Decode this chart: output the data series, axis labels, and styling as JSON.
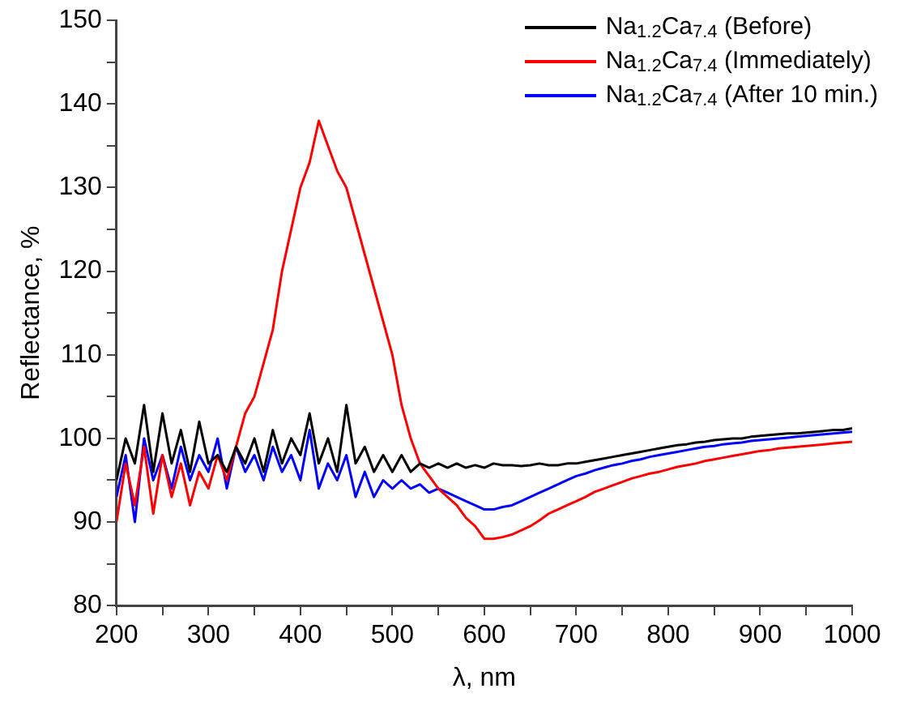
{
  "chart_data": {
    "type": "line",
    "xlabel": "λ, nm",
    "ylabel": "Reflectance, %",
    "x": [
      200,
      210,
      220,
      230,
      240,
      250,
      260,
      270,
      280,
      290,
      300,
      310,
      320,
      330,
      340,
      350,
      360,
      370,
      380,
      390,
      400,
      410,
      420,
      430,
      440,
      450,
      460,
      470,
      480,
      490,
      500,
      510,
      520,
      530,
      540,
      550,
      560,
      570,
      580,
      590,
      600,
      610,
      620,
      630,
      640,
      650,
      660,
      670,
      680,
      690,
      700,
      710,
      720,
      730,
      740,
      750,
      760,
      770,
      780,
      790,
      800,
      810,
      820,
      830,
      840,
      850,
      860,
      870,
      880,
      890,
      900,
      910,
      920,
      930,
      940,
      950,
      960,
      970,
      980,
      990,
      1000
    ],
    "series": [
      {
        "name": "Na$_{1.2}$Ca$_{7.4}$ (Before)",
        "color": "#000000",
        "values": [
          95,
          100,
          97,
          104,
          96,
          103,
          97,
          101,
          96,
          102,
          97,
          98,
          96,
          99,
          97,
          100,
          96,
          101,
          97,
          100,
          98,
          103,
          97,
          100,
          96,
          104,
          97,
          99,
          96,
          98,
          96,
          98,
          96,
          97,
          96.5,
          97,
          96.5,
          97,
          96.5,
          96.8,
          96.5,
          97,
          96.8,
          96.8,
          96.7,
          96.8,
          97,
          96.8,
          96.8,
          97,
          97,
          97.2,
          97.4,
          97.6,
          97.8,
          98,
          98.2,
          98.4,
          98.6,
          98.8,
          99,
          99.2,
          99.3,
          99.5,
          99.6,
          99.8,
          99.9,
          100,
          100,
          100.2,
          100.3,
          100.4,
          100.5,
          100.6,
          100.6,
          100.7,
          100.8,
          100.9,
          101,
          101,
          101.2
        ]
      },
      {
        "name": "Na$_{1.2}$Ca$_{7.4}$ (Immediately)",
        "color": "#ff0000",
        "values": [
          90,
          97,
          92,
          99,
          91,
          98,
          93,
          97,
          92,
          96,
          94,
          98,
          95,
          99,
          103,
          105,
          109,
          113,
          120,
          125,
          130,
          133,
          138,
          135,
          132,
          130,
          126,
          122,
          118,
          114,
          110,
          104,
          100,
          97,
          95.5,
          94,
          93,
          92,
          90.5,
          89.5,
          88,
          88,
          88.2,
          88.5,
          89,
          89.5,
          90.2,
          91,
          91.5,
          92,
          92.5,
          93,
          93.6,
          94,
          94.4,
          94.8,
          95.2,
          95.5,
          95.8,
          96,
          96.3,
          96.6,
          96.8,
          97,
          97.3,
          97.5,
          97.7,
          97.9,
          98.1,
          98.3,
          98.5,
          98.6,
          98.8,
          98.9,
          99,
          99.1,
          99.2,
          99.3,
          99.4,
          99.5,
          99.6
        ]
      },
      {
        "name": "Na$_{1.2}$Ca$_{7.4}$ (After 10 min.)",
        "color": "#0000ff",
        "values": [
          93,
          98,
          90,
          100,
          95,
          98,
          94,
          99,
          95,
          98,
          96,
          100,
          94,
          99,
          96,
          98,
          95,
          99,
          96,
          98,
          95,
          101,
          94,
          97,
          95,
          98,
          93,
          96,
          93,
          95,
          94,
          95,
          94,
          94.5,
          93.5,
          94,
          93.5,
          93,
          92.5,
          92,
          91.5,
          91.5,
          91.8,
          92,
          92.5,
          93,
          93.5,
          94,
          94.5,
          95,
          95.5,
          95.8,
          96.2,
          96.5,
          96.8,
          97,
          97.3,
          97.5,
          97.8,
          98,
          98.2,
          98.4,
          98.6,
          98.8,
          99,
          99.1,
          99.3,
          99.4,
          99.5,
          99.7,
          99.8,
          99.9,
          100,
          100.1,
          100.2,
          100.3,
          100.4,
          100.5,
          100.6,
          100.7,
          100.8
        ]
      }
    ],
    "xlim": [
      200,
      1000
    ],
    "xticks": [
      200,
      {
        "value": 250,
        "label": null
      },
      300,
      {
        "value": 350,
        "label": null
      },
      400,
      {
        "value": 450,
        "label": null
      },
      500,
      {
        "value": 550,
        "label": null
      },
      600,
      {
        "value": 650,
        "label": null
      },
      700,
      {
        "value": 750,
        "label": null
      },
      800,
      {
        "value": 850,
        "label": null
      },
      900,
      {
        "value": 950,
        "label": null
      },
      1000
    ],
    "ylim": [
      80,
      150
    ],
    "yticks": [
      80,
      {
        "value": 85,
        "label": null
      },
      90,
      {
        "value": 95,
        "label": null
      },
      100,
      {
        "value": 105,
        "label": null
      },
      110,
      {
        "value": 115,
        "label": null
      },
      120,
      {
        "value": 125,
        "label": null
      },
      130,
      {
        "value": 135,
        "label": null
      },
      140,
      {
        "value": 145,
        "label": null
      },
      150
    ],
    "grid": false,
    "legend": "top right",
    "marker": "none",
    "line_style": "solid"
  }
}
